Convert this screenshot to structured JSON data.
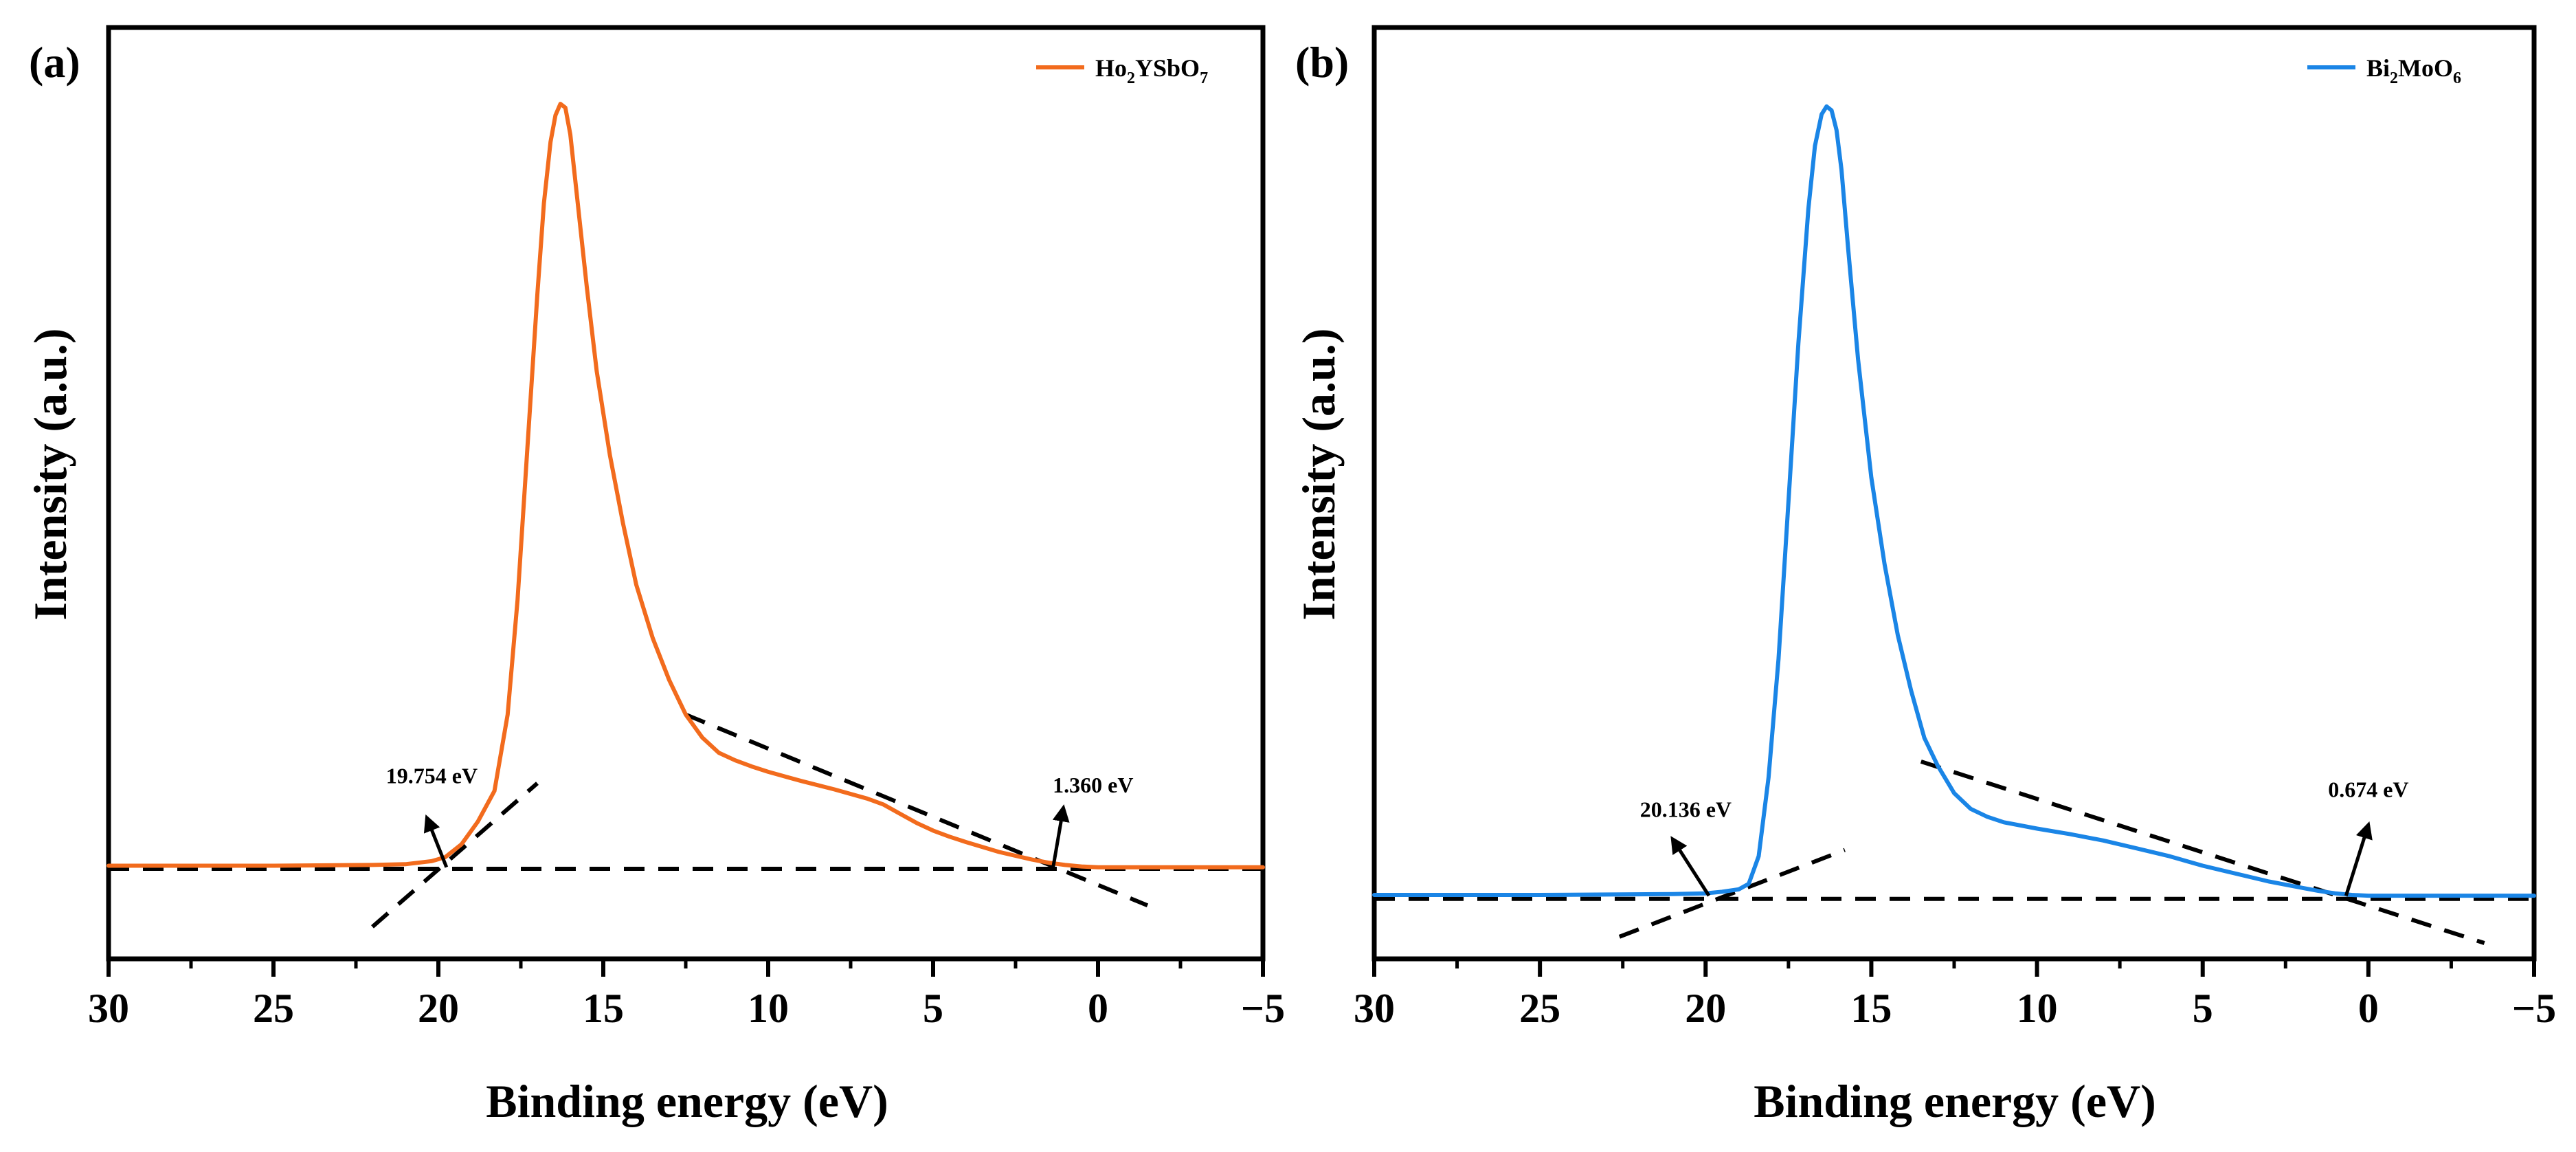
{
  "chart_data": [
    {
      "type": "line",
      "panel": "(a)",
      "xlabel": "Binding energy (eV)",
      "ylabel": "Intensity (a.u.)",
      "xlim": [
        30,
        -5
      ],
      "ylim": [
        -0.12,
        1.1
      ],
      "xticks": [
        30,
        25,
        20,
        15,
        10,
        5,
        0,
        -5
      ],
      "tick_labels": [
        "30",
        "25",
        "20",
        "15",
        "10",
        "5",
        "0",
        "−5"
      ],
      "grid": false,
      "legend_position": "top-right",
      "series": [
        {
          "name": "Ho2YSbO7",
          "legend_main": [
            "Ho",
            "YSbO"
          ],
          "legend_sub": [
            "2",
            "7"
          ],
          "color": "#F26B1D",
          "x": [
            30,
            25,
            22,
            21,
            20.2,
            19.8,
            19.3,
            18.8,
            18.3,
            17.9,
            17.6,
            17.3,
            17.0,
            16.8,
            16.6,
            16.45,
            16.3,
            16.15,
            16.0,
            15.8,
            15.5,
            15.2,
            14.8,
            14.4,
            14.0,
            13.5,
            13.0,
            12.5,
            12.0,
            11.5,
            11.0,
            10.5,
            10.0,
            9.0,
            8.0,
            7.0,
            6.5,
            6.0,
            5.5,
            5.0,
            4.5,
            4.0,
            3.0,
            2.0,
            1.5,
            1.0,
            0.5,
            0,
            -5
          ],
          "y": [
            0.002,
            0.002,
            0.003,
            0.004,
            0.008,
            0.013,
            0.03,
            0.06,
            0.1,
            0.2,
            0.35,
            0.55,
            0.75,
            0.87,
            0.95,
            0.985,
            1.0,
            0.995,
            0.96,
            0.88,
            0.76,
            0.65,
            0.54,
            0.45,
            0.37,
            0.3,
            0.245,
            0.2,
            0.17,
            0.15,
            0.14,
            0.132,
            0.125,
            0.113,
            0.102,
            0.09,
            0.082,
            0.07,
            0.058,
            0.048,
            0.04,
            0.033,
            0.02,
            0.01,
            0.006,
            0.003,
            0.001,
            0.0,
            0.0
          ]
        }
      ],
      "fit_lines": [
        {
          "x": [
            22.0,
            17.0
          ],
          "y": [
            -0.078,
            0.11
          ]
        },
        {
          "x": [
            12.5,
            -1.5
          ],
          "y": [
            0.2,
            -0.05
          ]
        },
        {
          "x": [
            30,
            -5
          ],
          "y": [
            -0.002,
            -0.002
          ]
        }
      ],
      "annotations": [
        {
          "text": "19.754 eV",
          "x": 19.754,
          "arrow_from": [
            19.754,
            0.0
          ],
          "arrow_to": [
            20.35,
            0.065
          ],
          "text_pos": [
            20.2,
            0.11
          ]
        },
        {
          "text": "1.360 eV",
          "x": 1.36,
          "arrow_from": [
            1.36,
            0.0
          ],
          "arrow_to": [
            1.05,
            0.078
          ],
          "text_pos": [
            0.15,
            0.098
          ]
        }
      ]
    },
    {
      "type": "line",
      "panel": "(b)",
      "xlabel": "Binding energy (eV)",
      "ylabel": "Intensity (a.u.)",
      "xlim": [
        30,
        -5
      ],
      "ylim": [
        -0.08,
        1.1
      ],
      "xticks": [
        30,
        25,
        20,
        15,
        10,
        5,
        0,
        -5
      ],
      "tick_labels": [
        "30",
        "25",
        "20",
        "15",
        "10",
        "5",
        "0",
        "−5"
      ],
      "grid": false,
      "legend_position": "top-right",
      "series": [
        {
          "name": "Bi2MoO6",
          "legend_main": [
            "Bi",
            "MoO"
          ],
          "legend_sub": [
            "2",
            "6"
          ],
          "color": "#1A85E6",
          "x": [
            30,
            25,
            21,
            20,
            19.5,
            19.0,
            18.7,
            18.4,
            18.1,
            17.8,
            17.5,
            17.2,
            16.9,
            16.7,
            16.5,
            16.35,
            16.2,
            16.05,
            15.9,
            15.7,
            15.4,
            15.0,
            14.6,
            14.2,
            13.8,
            13.4,
            13.0,
            12.5,
            12.0,
            11.5,
            11.0,
            10.0,
            9.0,
            8.0,
            7.0,
            6.0,
            5.0,
            4.0,
            3.0,
            2.0,
            1.5,
            1.0,
            0.5,
            0,
            -5
          ],
          "y": [
            0.001,
            0.001,
            0.002,
            0.003,
            0.005,
            0.008,
            0.015,
            0.05,
            0.15,
            0.3,
            0.5,
            0.7,
            0.87,
            0.95,
            0.99,
            1.0,
            0.995,
            0.97,
            0.92,
            0.82,
            0.68,
            0.53,
            0.42,
            0.33,
            0.26,
            0.2,
            0.165,
            0.13,
            0.11,
            0.1,
            0.093,
            0.085,
            0.078,
            0.07,
            0.06,
            0.05,
            0.038,
            0.028,
            0.018,
            0.01,
            0.006,
            0.003,
            0.001,
            0.0,
            0.0
          ]
        }
      ],
      "fit_lines": [
        {
          "x": [
            22.6,
            15.8
          ],
          "y": [
            -0.052,
            0.058
          ]
        },
        {
          "x": [
            13.5,
            -3.5
          ],
          "y": [
            0.17,
            -0.06
          ]
        },
        {
          "x": [
            30,
            -5
          ],
          "y": [
            -0.004,
            -0.004
          ]
        }
      ],
      "annotations": [
        {
          "text": "20.136 eV",
          "x": 20.136,
          "arrow_from": [
            19.9,
            0.0
          ],
          "arrow_to": [
            21.0,
            0.072
          ],
          "text_pos": [
            20.6,
            0.1
          ]
        },
        {
          "text": "0.674 eV",
          "x": 0.674,
          "arrow_from": [
            0.674,
            0.0
          ],
          "arrow_to": [
            0.0,
            0.09
          ],
          "text_pos": [
            0.0,
            0.125
          ]
        }
      ]
    }
  ]
}
